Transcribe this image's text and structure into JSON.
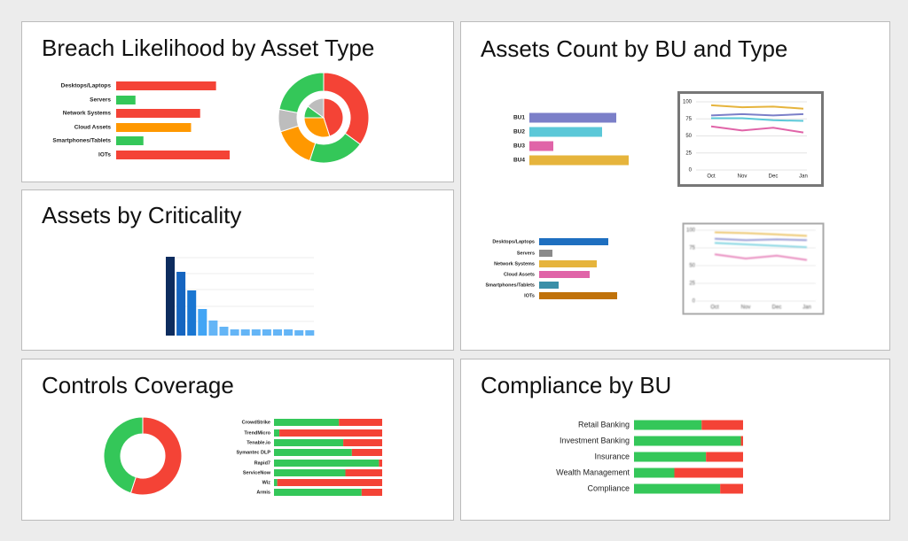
{
  "chart_data": [
    {
      "type": "bar",
      "orientation": "horizontal",
      "title": "Breach Likelihood by Asset Type",
      "categories": [
        "Desktops/Laptops",
        "Servers",
        "Network Systems",
        "Cloud Assets",
        "Smartphones/Tablets",
        "IOTs"
      ],
      "values": [
        88,
        17,
        74,
        66,
        24,
        100
      ],
      "colors": [
        "#f44336",
        "#34c759",
        "#f44336",
        "#ff9800",
        "#34c759",
        "#f44336"
      ]
    },
    {
      "type": "pie",
      "rings": [
        {
          "values": [
            35,
            20,
            15,
            8,
            22
          ],
          "colors": [
            "#f44336",
            "#34c759",
            "#ff9800",
            "#bdbdbd",
            "#34c759"
          ]
        },
        {
          "values": [
            45,
            30,
            10,
            15
          ],
          "colors": [
            "#f44336",
            "#ff9800",
            "#34c759",
            "#bdbdbd"
          ]
        }
      ]
    },
    {
      "type": "bar",
      "orientation": "horizontal",
      "title": "Assets Count by BU and Type",
      "categories": [
        "BU1",
        "BU2",
        "BU3",
        "BU4"
      ],
      "values": [
        98,
        82,
        27,
        112
      ],
      "colors": [
        "#7b7fc8",
        "#5bc8d8",
        "#e064a8",
        "#e6b43c"
      ]
    },
    {
      "type": "line",
      "x": [
        "Oct",
        "Nov",
        "Dec",
        "Jan"
      ],
      "ylim": [
        0,
        100
      ],
      "yticks": [
        0,
        25,
        50,
        75,
        100
      ],
      "grid": true,
      "series": [
        {
          "color": "#e6b43c",
          "values": [
            95,
            92,
            93,
            90
          ]
        },
        {
          "color": "#7b7fc8",
          "values": [
            80,
            82,
            80,
            82
          ]
        },
        {
          "color": "#5bc8d8",
          "values": [
            76,
            76,
            73,
            72
          ]
        },
        {
          "color": "#e064a8",
          "values": [
            64,
            58,
            62,
            55
          ]
        }
      ]
    },
    {
      "type": "bar",
      "orientation": "horizontal",
      "categories": [
        "Desktops/Laptops",
        "Servers",
        "Network Systems",
        "Cloud Assets",
        "Smartphones/Tablets",
        "IOTs"
      ],
      "values": [
        78,
        15,
        65,
        57,
        22,
        88
      ],
      "colors": [
        "#1e6fc0",
        "#8a8a8a",
        "#e6b43c",
        "#e064a8",
        "#3a8fa8",
        "#c0720a"
      ]
    },
    {
      "type": "line",
      "blurred": true,
      "x": [
        "Oct",
        "Nov",
        "Dec",
        "Jan"
      ],
      "ylim": [
        0,
        100
      ],
      "yticks": [
        0,
        25,
        50,
        75,
        100
      ],
      "grid": true,
      "series": [
        {
          "color": "#e6b43c",
          "values": [
            97,
            96,
            94,
            92
          ]
        },
        {
          "color": "#7b7fc8",
          "values": [
            88,
            86,
            87,
            86
          ]
        },
        {
          "color": "#5bc8d8",
          "values": [
            82,
            80,
            78,
            76
          ]
        },
        {
          "color": "#e064a8",
          "values": [
            66,
            60,
            64,
            58
          ]
        }
      ]
    },
    {
      "type": "bar",
      "orientation": "vertical",
      "title": "Assets by Criticality",
      "values": [
        89,
        72,
        51,
        30,
        17,
        10,
        7,
        7,
        7,
        7,
        7,
        7,
        6,
        6
      ],
      "colors": [
        "#0d2c5e",
        "#1565c0",
        "#1976d2",
        "#42a5f5",
        "#64b5f6",
        "#64b5f6",
        "#64b5f6",
        "#64b5f6",
        "#64b5f6",
        "#64b5f6",
        "#64b5f6",
        "#64b5f6",
        "#64b5f6",
        "#64b5f6"
      ]
    },
    {
      "type": "pie",
      "title": "Controls Coverage",
      "rings": [
        {
          "values": [
            55,
            45
          ],
          "colors": [
            "#f44336",
            "#34c759"
          ]
        }
      ]
    },
    {
      "type": "stacked-bar",
      "categories": [
        "CrowdStrike",
        "TrendMicro",
        "Tenable.io",
        "Symantec DLP",
        "Rapid7",
        "ServiceNow",
        "Wiz",
        "Armis"
      ],
      "series": [
        {
          "color": "#34c759",
          "values": [
            60,
            5,
            64,
            72,
            97,
            66,
            3,
            81
          ]
        },
        {
          "color": "#f44336",
          "values": [
            40,
            95,
            36,
            28,
            3,
            34,
            97,
            19
          ]
        }
      ]
    },
    {
      "type": "stacked-bar",
      "title": "Compliance by BU",
      "categories": [
        "Retail Banking",
        "Investment Banking",
        "Insurance",
        "Wealth Management",
        "Compliance"
      ],
      "series": [
        {
          "color": "#34c759",
          "values": [
            62,
            98,
            66,
            37,
            79
          ]
        },
        {
          "color": "#f44336",
          "values": [
            38,
            2,
            34,
            63,
            21
          ]
        }
      ]
    }
  ]
}
